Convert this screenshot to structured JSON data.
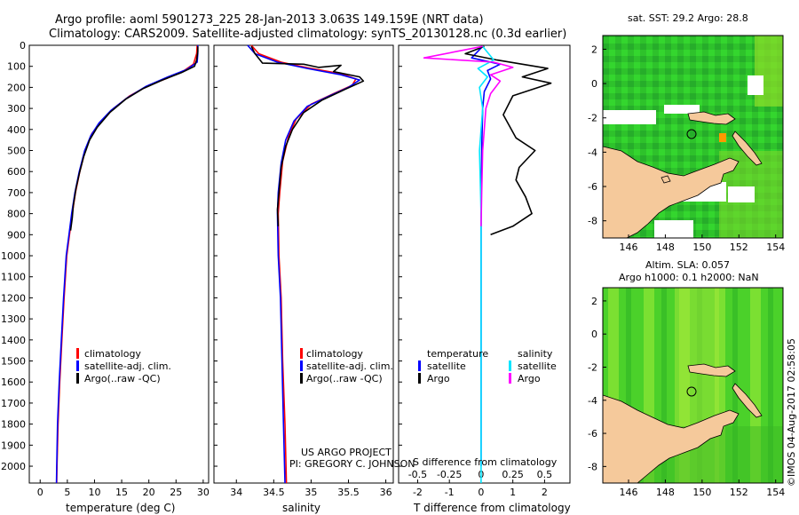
{
  "header": {
    "line1": "Argo profile: aoml 5901273_225 28-Jan-2013 3.063S 149.159E (NRT data)",
    "line2": "Climatology: CARS2009. Satellite-adjusted climatology: synTS_20130128.nc (0.3d earlier)"
  },
  "colors": {
    "climatology": "#ff0000",
    "satellite": "#0000ff",
    "argo": "#000000",
    "sat_salinity": "#00e5ff",
    "argo_salinity": "#ff00ff"
  },
  "chart_data": [
    {
      "type": "line",
      "id": "temperature",
      "xlabel": "temperature (deg C)",
      "xlim": [
        -2,
        31
      ],
      "ylim": [
        2080,
        0
      ],
      "xticks": [
        0,
        5,
        10,
        15,
        20,
        25,
        30
      ],
      "yticks": [
        0,
        100,
        200,
        300,
        400,
        500,
        600,
        700,
        800,
        900,
        1000,
        1100,
        1200,
        1300,
        1400,
        1500,
        1600,
        1700,
        1800,
        1900,
        2000
      ],
      "series": [
        {
          "name": "climatology",
          "color": "#ff0000",
          "points": [
            [
              28.9,
              0
            ],
            [
              28.8,
              40
            ],
            [
              28.2,
              90
            ],
            [
              26.5,
              120
            ],
            [
              23.5,
              155
            ],
            [
              20,
              190
            ],
            [
              16.5,
              240
            ],
            [
              13.5,
              300
            ],
            [
              11,
              370
            ],
            [
              9.5,
              420
            ],
            [
              8.3,
              500
            ],
            [
              7.3,
              600
            ],
            [
              6.5,
              700
            ],
            [
              5.9,
              800
            ],
            [
              5.4,
              900
            ],
            [
              4.9,
              1000
            ],
            [
              4.4,
              1200
            ],
            [
              4,
              1400
            ],
            [
              3.6,
              1600
            ],
            [
              3.3,
              1800
            ],
            [
              3.1,
              2000
            ],
            [
              3.05,
              2080
            ]
          ]
        },
        {
          "name": "satellite-adj. clim.",
          "color": "#0000ff",
          "points": [
            [
              29,
              0
            ],
            [
              29,
              40
            ],
            [
              28.9,
              80
            ],
            [
              27,
              115
            ],
            [
              23.5,
              150
            ],
            [
              19.5,
              195
            ],
            [
              16,
              250
            ],
            [
              13,
              310
            ],
            [
              10.8,
              370
            ],
            [
              9.3,
              430
            ],
            [
              8.2,
              500
            ],
            [
              7.2,
              600
            ],
            [
              6.4,
              700
            ],
            [
              5.8,
              800
            ],
            [
              5.3,
              900
            ],
            [
              4.8,
              1000
            ],
            [
              4.3,
              1200
            ],
            [
              3.9,
              1400
            ],
            [
              3.5,
              1600
            ],
            [
              3.2,
              1800
            ],
            [
              3.05,
              2000
            ],
            [
              3,
              2080
            ]
          ]
        },
        {
          "name": "Argo(..raw -QC)",
          "color": "#000000",
          "points": [
            [
              29,
              5
            ],
            [
              29,
              30
            ],
            [
              28.8,
              70
            ],
            [
              28.4,
              100
            ],
            [
              26,
              130
            ],
            [
              22.5,
              165
            ],
            [
              19,
              205
            ],
            [
              15.8,
              255
            ],
            [
              12.8,
              320
            ],
            [
              10.5,
              390
            ],
            [
              9.1,
              450
            ],
            [
              8,
              530
            ],
            [
              7.2,
              610
            ],
            [
              6.6,
              680
            ],
            [
              6.1,
              760
            ],
            [
              5.9,
              820
            ],
            [
              5.6,
              880
            ]
          ]
        }
      ],
      "legend": [
        "climatology",
        "satellite-adj. clim.",
        "Argo(..raw -QC)"
      ]
    },
    {
      "type": "line",
      "id": "salinity",
      "xlabel": "salinity",
      "xlim": [
        33.7,
        36.1
      ],
      "ylim": [
        2080,
        0
      ],
      "xticks": [
        34,
        34.5,
        35,
        35.5,
        36
      ],
      "series": [
        {
          "name": "climatology",
          "color": "#ff0000",
          "points": [
            [
              34.2,
              0
            ],
            [
              34.3,
              40
            ],
            [
              34.6,
              80
            ],
            [
              35,
              110
            ],
            [
              35.4,
              135
            ],
            [
              35.6,
              160
            ],
            [
              35.55,
              190
            ],
            [
              35.3,
              230
            ],
            [
              35.0,
              280
            ],
            [
              34.8,
              350
            ],
            [
              34.7,
              430
            ],
            [
              34.62,
              550
            ],
            [
              34.58,
              700
            ],
            [
              34.56,
              800
            ],
            [
              34.57,
              1000
            ],
            [
              34.6,
              1200
            ],
            [
              34.62,
              1500
            ],
            [
              34.65,
              1800
            ],
            [
              34.67,
              2080
            ]
          ]
        },
        {
          "name": "satellite-adj. clim.",
          "color": "#0000ff",
          "points": [
            [
              34.15,
              0
            ],
            [
              34.25,
              40
            ],
            [
              34.55,
              80
            ],
            [
              34.95,
              110
            ],
            [
              35.4,
              140
            ],
            [
              35.65,
              165
            ],
            [
              35.5,
              200
            ],
            [
              35.25,
              240
            ],
            [
              34.95,
              290
            ],
            [
              34.77,
              360
            ],
            [
              34.66,
              450
            ],
            [
              34.6,
              560
            ],
            [
              34.56,
              700
            ],
            [
              34.55,
              800
            ],
            [
              34.56,
              1000
            ],
            [
              34.59,
              1200
            ],
            [
              34.61,
              1500
            ],
            [
              34.63,
              1800
            ],
            [
              34.65,
              2080
            ]
          ]
        },
        {
          "name": "Argo(..raw -QC)",
          "color": "#000000",
          "points": [
            [
              34.2,
              5
            ],
            [
              34.25,
              40
            ],
            [
              34.35,
              85
            ],
            [
              34.9,
              90
            ],
            [
              35.1,
              105
            ],
            [
              35.4,
              95
            ],
            [
              35.3,
              125
            ],
            [
              35.65,
              150
            ],
            [
              35.7,
              170
            ],
            [
              35.45,
              210
            ],
            [
              35.15,
              260
            ],
            [
              34.9,
              320
            ],
            [
              34.75,
              400
            ],
            [
              34.66,
              480
            ],
            [
              34.6,
              580
            ],
            [
              34.57,
              700
            ],
            [
              34.55,
              780
            ],
            [
              34.56,
              860
            ]
          ]
        }
      ],
      "legend": [
        "climatology",
        "satellite-adj. clim.",
        "Argo(..raw -QC)"
      ],
      "annotation": [
        "US ARGO PROJECT",
        "PI: GREGORY C. JOHNSON"
      ]
    },
    {
      "type": "line",
      "id": "difference",
      "xlabel_top": "S difference from climatology",
      "xlabel": "T difference from climatology",
      "xlim": [
        -2.6,
        2.8
      ],
      "ylim": [
        2080,
        0
      ],
      "xticks": [
        -2,
        -1,
        0,
        1,
        2
      ],
      "xticklabels_top": [
        "-0.5",
        "-0.25",
        "0",
        "0.25",
        "0.5"
      ],
      "series": [
        {
          "name": "temperature satellite",
          "color": "#0000ff",
          "points": [
            [
              0.05,
              5
            ],
            [
              -0.3,
              60
            ],
            [
              0.6,
              90
            ],
            [
              0.2,
              120
            ],
            [
              0.3,
              160
            ],
            [
              0.1,
              220
            ],
            [
              0.05,
              300
            ],
            [
              0.02,
              500
            ],
            [
              0,
              800
            ],
            [
              0,
              1000
            ],
            [
              0,
              1500
            ],
            [
              0,
              2000
            ]
          ]
        },
        {
          "name": "temperature Argo",
          "color": "#000000",
          "points": [
            [
              0.1,
              5
            ],
            [
              -0.5,
              40
            ],
            [
              0.5,
              70
            ],
            [
              2.1,
              110
            ],
            [
              1.3,
              150
            ],
            [
              2.2,
              180
            ],
            [
              1.0,
              240
            ],
            [
              0.7,
              330
            ],
            [
              1.1,
              440
            ],
            [
              1.7,
              500
            ],
            [
              1.2,
              580
            ],
            [
              1.1,
              640
            ],
            [
              1.4,
              720
            ],
            [
              1.6,
              800
            ],
            [
              1.0,
              860
            ],
            [
              0.3,
              900
            ]
          ]
        },
        {
          "name": "salinity satellite",
          "color": "#00e5ff",
          "points": [
            [
              0.05,
              5
            ],
            [
              0.4,
              70
            ],
            [
              -0.1,
              110
            ],
            [
              0.2,
              150
            ],
            [
              -0.05,
              200
            ],
            [
              0.05,
              300
            ],
            [
              -0.05,
              500
            ],
            [
              0,
              800
            ],
            [
              0,
              1200
            ],
            [
              0,
              2080
            ]
          ]
        },
        {
          "name": "salinity Argo",
          "color": "#ff00ff",
          "points": [
            [
              0.05,
              5
            ],
            [
              -1.8,
              60
            ],
            [
              0.4,
              80
            ],
            [
              1.0,
              105
            ],
            [
              0.3,
              140
            ],
            [
              0.6,
              170
            ],
            [
              0.3,
              230
            ],
            [
              0.15,
              300
            ],
            [
              0.1,
              400
            ],
            [
              0.05,
              500
            ],
            [
              0.02,
              700
            ],
            [
              0.0,
              860
            ]
          ]
        }
      ],
      "legend_headers": [
        "temperature",
        "salinity"
      ],
      "legend": [
        "satellite",
        "Argo",
        "satellite",
        "Argo"
      ]
    }
  ],
  "maps": {
    "sst": {
      "title": "sat. SST: 29.2  Argo: 28.8",
      "xticks": [
        "146",
        "148",
        "150",
        "152",
        "154"
      ],
      "yticks": [
        "2",
        "0",
        "-2",
        "-4",
        "-6",
        "-8"
      ]
    },
    "sla": {
      "title1": "Altim. SLA: 0.057",
      "title2": "Argo h1000: 0.1  h2000: NaN",
      "xticks": [
        "146",
        "148",
        "150",
        "152",
        "154"
      ],
      "yticks": [
        "2",
        "0",
        "-2",
        "-4",
        "-6",
        "-8"
      ]
    }
  },
  "credit": "©IMOS 04-Aug-2017 02:58:05"
}
